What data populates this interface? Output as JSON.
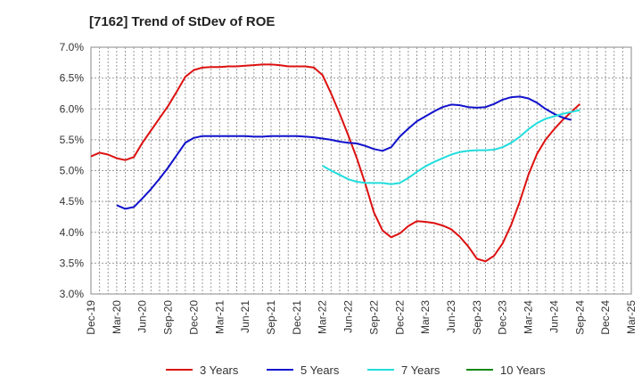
{
  "chart_data": {
    "type": "line",
    "title": "[7162]  Trend of StDev of ROE",
    "xlabel": "",
    "ylabel": "",
    "ylim": [
      3.0,
      7.0
    ],
    "y_ticks": [
      3.0,
      3.5,
      4.0,
      4.5,
      5.0,
      5.5,
      6.0,
      6.5,
      7.0
    ],
    "y_tick_labels": [
      "3.0%",
      "3.5%",
      "4.0%",
      "4.5%",
      "5.0%",
      "5.5%",
      "6.0%",
      "6.5%",
      "7.0%"
    ],
    "x_tick_labels": [
      "Dec-19",
      "Mar-20",
      "Jun-20",
      "Sep-20",
      "Dec-20",
      "Mar-21",
      "Jun-21",
      "Sep-21",
      "Dec-21",
      "Mar-22",
      "Jun-22",
      "Sep-22",
      "Dec-22",
      "Mar-23",
      "Jun-23",
      "Sep-23",
      "Dec-23",
      "Mar-24",
      "Jun-24",
      "Sep-24",
      "Dec-24",
      "Mar-25"
    ],
    "grid": true,
    "legend_position": "bottom",
    "series": [
      {
        "name": "3 Years",
        "color": "#dd1111",
        "points": [
          [
            "Dec-19",
            5.23
          ],
          [
            "Jan-20",
            5.29
          ],
          [
            "Feb-20",
            5.26
          ],
          [
            "Mar-20",
            5.2
          ],
          [
            "Apr-20",
            5.17
          ],
          [
            "May-20",
            5.22
          ],
          [
            "Jun-20",
            5.45
          ],
          [
            "Jul-20",
            5.65
          ],
          [
            "Aug-20",
            5.85
          ],
          [
            "Sep-20",
            6.05
          ],
          [
            "Oct-20",
            6.28
          ],
          [
            "Nov-20",
            6.52
          ],
          [
            "Dec-20",
            6.63
          ],
          [
            "Jan-21",
            6.67
          ],
          [
            "Feb-21",
            6.68
          ],
          [
            "Mar-21",
            6.68
          ],
          [
            "Apr-21",
            6.69
          ],
          [
            "May-21",
            6.69
          ],
          [
            "Jun-21",
            6.7
          ],
          [
            "Jul-21",
            6.71
          ],
          [
            "Aug-21",
            6.72
          ],
          [
            "Sep-21",
            6.72
          ],
          [
            "Oct-21",
            6.71
          ],
          [
            "Nov-21",
            6.69
          ],
          [
            "Dec-21",
            6.69
          ],
          [
            "Jan-22",
            6.69
          ],
          [
            "Feb-22",
            6.67
          ],
          [
            "Mar-22",
            6.55
          ],
          [
            "Apr-22",
            6.25
          ],
          [
            "May-22",
            5.92
          ],
          [
            "Jun-22",
            5.57
          ],
          [
            "Jul-22",
            5.2
          ],
          [
            "Aug-22",
            4.78
          ],
          [
            "Sep-22",
            4.32
          ],
          [
            "Oct-22",
            4.03
          ],
          [
            "Nov-22",
            3.92
          ],
          [
            "Dec-22",
            3.98
          ],
          [
            "Jan-23",
            4.1
          ],
          [
            "Feb-23",
            4.18
          ],
          [
            "Mar-23",
            4.17
          ],
          [
            "Apr-23",
            4.15
          ],
          [
            "May-23",
            4.11
          ],
          [
            "Jun-23",
            4.05
          ],
          [
            "Jul-23",
            3.93
          ],
          [
            "Aug-23",
            3.77
          ],
          [
            "Sep-23",
            3.57
          ],
          [
            "Oct-23",
            3.53
          ],
          [
            "Nov-23",
            3.62
          ],
          [
            "Dec-23",
            3.82
          ],
          [
            "Jan-24",
            4.12
          ],
          [
            "Feb-24",
            4.5
          ],
          [
            "Mar-24",
            4.93
          ],
          [
            "Apr-24",
            5.27
          ],
          [
            "May-24",
            5.5
          ],
          [
            "Jun-24",
            5.67
          ],
          [
            "Jul-24",
            5.82
          ],
          [
            "Aug-24",
            5.95
          ],
          [
            "Sep-24",
            6.08
          ]
        ]
      },
      {
        "name": "5 Years",
        "color": "#1111cc",
        "points": [
          [
            "Mar-20",
            4.44
          ],
          [
            "Apr-20",
            4.38
          ],
          [
            "May-20",
            4.41
          ],
          [
            "Jun-20",
            4.55
          ],
          [
            "Jul-20",
            4.7
          ],
          [
            "Aug-20",
            4.87
          ],
          [
            "Sep-20",
            5.05
          ],
          [
            "Oct-20",
            5.25
          ],
          [
            "Nov-20",
            5.45
          ],
          [
            "Dec-20",
            5.53
          ],
          [
            "Jan-21",
            5.56
          ],
          [
            "Feb-21",
            5.56
          ],
          [
            "Mar-21",
            5.56
          ],
          [
            "Apr-21",
            5.56
          ],
          [
            "May-21",
            5.56
          ],
          [
            "Jun-21",
            5.56
          ],
          [
            "Jul-21",
            5.55
          ],
          [
            "Aug-21",
            5.55
          ],
          [
            "Sep-21",
            5.56
          ],
          [
            "Oct-21",
            5.56
          ],
          [
            "Nov-21",
            5.56
          ],
          [
            "Dec-21",
            5.56
          ],
          [
            "Jan-22",
            5.55
          ],
          [
            "Feb-22",
            5.54
          ],
          [
            "Mar-22",
            5.52
          ],
          [
            "Apr-22",
            5.5
          ],
          [
            "May-22",
            5.47
          ],
          [
            "Jun-22",
            5.45
          ],
          [
            "Jul-22",
            5.44
          ],
          [
            "Aug-22",
            5.4
          ],
          [
            "Sep-22",
            5.35
          ],
          [
            "Oct-22",
            5.32
          ],
          [
            "Nov-22",
            5.38
          ],
          [
            "Dec-22",
            5.55
          ],
          [
            "Jan-23",
            5.68
          ],
          [
            "Feb-23",
            5.8
          ],
          [
            "Mar-23",
            5.88
          ],
          [
            "Apr-23",
            5.96
          ],
          [
            "May-23",
            6.03
          ],
          [
            "Jun-23",
            6.07
          ],
          [
            "Jul-23",
            6.06
          ],
          [
            "Aug-23",
            6.03
          ],
          [
            "Sep-23",
            6.02
          ],
          [
            "Oct-23",
            6.03
          ],
          [
            "Nov-23",
            6.08
          ],
          [
            "Dec-23",
            6.15
          ],
          [
            "Jan-24",
            6.19
          ],
          [
            "Feb-24",
            6.2
          ],
          [
            "Mar-24",
            6.17
          ],
          [
            "Apr-24",
            6.1
          ],
          [
            "May-24",
            6.0
          ],
          [
            "Jun-24",
            5.92
          ],
          [
            "Jul-24",
            5.86
          ],
          [
            "Aug-24",
            5.82
          ]
        ]
      },
      {
        "name": "7 Years",
        "color": "#22dddd",
        "points": [
          [
            "Mar-22",
            5.08
          ],
          [
            "Apr-22",
            5.0
          ],
          [
            "May-22",
            4.93
          ],
          [
            "Jun-22",
            4.86
          ],
          [
            "Jul-22",
            4.82
          ],
          [
            "Aug-22",
            4.8
          ],
          [
            "Sep-22",
            4.8
          ],
          [
            "Oct-22",
            4.8
          ],
          [
            "Nov-22",
            4.78
          ],
          [
            "Dec-22",
            4.8
          ],
          [
            "Jan-23",
            4.88
          ],
          [
            "Feb-23",
            4.98
          ],
          [
            "Mar-23",
            5.07
          ],
          [
            "Apr-23",
            5.14
          ],
          [
            "May-23",
            5.2
          ],
          [
            "Jun-23",
            5.26
          ],
          [
            "Jul-23",
            5.3
          ],
          [
            "Aug-23",
            5.32
          ],
          [
            "Sep-23",
            5.33
          ],
          [
            "Oct-23",
            5.33
          ],
          [
            "Nov-23",
            5.34
          ],
          [
            "Dec-23",
            5.38
          ],
          [
            "Jan-24",
            5.45
          ],
          [
            "Feb-24",
            5.55
          ],
          [
            "Mar-24",
            5.67
          ],
          [
            "Apr-24",
            5.77
          ],
          [
            "May-24",
            5.84
          ],
          [
            "Jun-24",
            5.88
          ],
          [
            "Jul-24",
            5.92
          ],
          [
            "Aug-24",
            5.95
          ],
          [
            "Sep-24",
            5.98
          ]
        ]
      },
      {
        "name": "10 Years",
        "color": "#118811",
        "points": []
      }
    ]
  }
}
